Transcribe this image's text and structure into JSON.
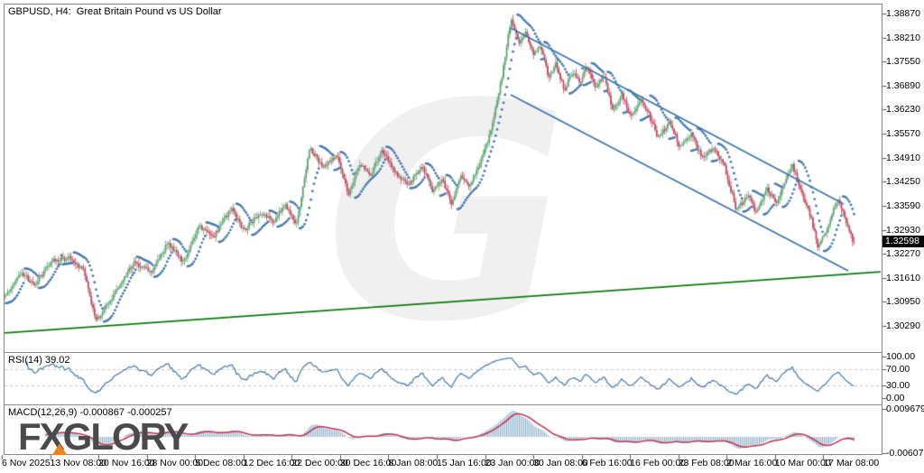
{
  "header": {
    "title": "GBPUSD, H4:  Great Britain Pound vs US Dollar"
  },
  "symbol": {
    "name": "GBPUSD",
    "timeframe": "H4",
    "description": "Great Britain Pound vs US Dollar"
  },
  "watermark": {
    "letter": "G"
  },
  "logo": {
    "text": "FXGLORY"
  },
  "price_panel": {
    "current_price": "1.32598",
    "axis_ticks": [
      "1.38870",
      "1.38210",
      "1.37550",
      "1.36890",
      "1.36230",
      "1.35570",
      "1.34910",
      "1.34250",
      "1.33590",
      "1.32930",
      "1.32270",
      "1.31610",
      "1.30950",
      "1.30290"
    ]
  },
  "rsi_panel": {
    "label": "RSI(14) 39.02",
    "axis_ticks": [
      "100.00",
      "70.00",
      "30.00",
      "0.00"
    ],
    "levels": [
      70,
      30
    ]
  },
  "macd_panel": {
    "label": "MACD(12,26,9) -0.000867 -0.000257",
    "axis_ticks": [
      "0.009679",
      "-0.006078"
    ]
  },
  "time_axis": {
    "labels": [
      "6 Nov 2025",
      "13 Nov 08:00",
      "20 Nov 16:00",
      "28 Nov 00:00",
      "5 Dec 08:00",
      "12 Dec 16:00",
      "22 Dec 00:00",
      "30 Dec 16:00",
      "8 Jan 08:00",
      "15 Jan 16:00",
      "23 Jan 00:00",
      "30 Jan 08:00",
      "6 Feb 16:00",
      "16 Feb 00:00",
      "23 Feb 08:00",
      "2 Mar 16:00",
      "10 Mar 00:00",
      "17 Mar 08:00"
    ]
  },
  "colors": {
    "bull": "#5fa475",
    "bear": "#bf4a60",
    "sar": "#4679ad",
    "channel": "#3c76ad",
    "trendline": "#0c7a0c",
    "rsi_line": "#4878a8",
    "rsi_levels": "#c9c9c9",
    "macd_hist": "#8fb0c9",
    "macd_signal": "#c22e4e",
    "axis_tick": "#555555",
    "badge_bg": "#000000",
    "badge_text": "#ffffff",
    "watermark": "#f0f0f0",
    "logo": "#4a4a4a",
    "logo_accent": "#e8821e"
  },
  "chart_data": {
    "type": "candlestick",
    "title": "GBPUSD, H4: Great Britain Pound vs US Dollar",
    "symbol": "GBPUSD",
    "timeframe": "H4",
    "y_axis": {
      "ticks": [
        1.3887,
        1.3821,
        1.3755,
        1.3689,
        1.3623,
        1.3557,
        1.3491,
        1.3425,
        1.3359,
        1.3293,
        1.3227,
        1.3161,
        1.3095,
        1.3029
      ],
      "current": 1.32598,
      "range": [
        1.296,
        1.3902
      ]
    },
    "x_axis": {
      "labels": [
        "6 Nov 2025",
        "13 Nov 08:00",
        "20 Nov 16:00",
        "28 Nov 00:00",
        "5 Dec 08:00",
        "12 Dec 16:00",
        "22 Dec 00:00",
        "30 Dec 16:00",
        "8 Jan 08:00",
        "15 Jan 16:00",
        "23 Jan 00:00",
        "30 Jan 08:00",
        "6 Feb 16:00",
        "16 Feb 00:00",
        "23 Feb 08:00",
        "2 Mar 16:00",
        "10 Mar 00:00",
        "17 Mar 08:00"
      ]
    },
    "price_path": [
      [
        6,
        1.3104
      ],
      [
        25,
        1.3178
      ],
      [
        40,
        1.3141
      ],
      [
        60,
        1.3208
      ],
      [
        80,
        1.3216
      ],
      [
        95,
        1.3178
      ],
      [
        108,
        1.3041
      ],
      [
        125,
        1.3104
      ],
      [
        150,
        1.3203
      ],
      [
        170,
        1.3178
      ],
      [
        188,
        1.3258
      ],
      [
        205,
        1.3203
      ],
      [
        222,
        1.3303
      ],
      [
        238,
        1.3273
      ],
      [
        258,
        1.3352
      ],
      [
        272,
        1.329
      ],
      [
        290,
        1.334
      ],
      [
        305,
        1.3315
      ],
      [
        318,
        1.3365
      ],
      [
        330,
        1.3303
      ],
      [
        345,
        1.3519
      ],
      [
        360,
        1.3464
      ],
      [
        375,
        1.3497
      ],
      [
        388,
        1.339
      ],
      [
        400,
        1.3477
      ],
      [
        413,
        1.3447
      ],
      [
        425,
        1.3514
      ],
      [
        440,
        1.3447
      ],
      [
        455,
        1.342
      ],
      [
        470,
        1.3465
      ],
      [
        482,
        1.3397
      ],
      [
        492,
        1.3432
      ],
      [
        502,
        1.3365
      ],
      [
        512,
        1.344
      ],
      [
        522,
        1.341
      ],
      [
        532,
        1.3469
      ],
      [
        545,
        1.3556
      ],
      [
        557,
        1.37
      ],
      [
        568,
        1.387
      ],
      [
        577,
        1.3805
      ],
      [
        585,
        1.3837
      ],
      [
        593,
        1.377
      ],
      [
        600,
        1.38
      ],
      [
        610,
        1.3713
      ],
      [
        618,
        1.375
      ],
      [
        627,
        1.3676
      ],
      [
        636,
        1.3726
      ],
      [
        645,
        1.3696
      ],
      [
        652,
        1.3743
      ],
      [
        662,
        1.3683
      ],
      [
        671,
        1.3715
      ],
      [
        681,
        1.3621
      ],
      [
        691,
        1.3666
      ],
      [
        701,
        1.3601
      ],
      [
        711,
        1.3651
      ],
      [
        721,
        1.3609
      ],
      [
        731,
        1.3546
      ],
      [
        744,
        1.3589
      ],
      [
        755,
        1.3521
      ],
      [
        768,
        1.3556
      ],
      [
        780,
        1.3489
      ],
      [
        793,
        1.3521
      ],
      [
        805,
        1.3464
      ],
      [
        818,
        1.3347
      ],
      [
        830,
        1.3389
      ],
      [
        840,
        1.334
      ],
      [
        852,
        1.3407
      ],
      [
        862,
        1.3365
      ],
      [
        874,
        1.3444
      ],
      [
        880,
        1.3469
      ],
      [
        890,
        1.3397
      ],
      [
        900,
        1.3332
      ],
      [
        908,
        1.3248
      ],
      [
        916,
        1.3282
      ],
      [
        925,
        1.3347
      ],
      [
        931,
        1.3372
      ],
      [
        938,
        1.3327
      ],
      [
        944,
        1.3282
      ],
      [
        947,
        1.32598
      ]
    ],
    "overlays": {
      "parabolic_sar": {
        "step": 0.02,
        "max": 0.2,
        "style": "dots"
      },
      "down_channel": {
        "upper": [
          [
            566,
            1.38473
          ],
          [
            935,
            1.33639
          ]
        ],
        "lower": [
          [
            566,
            1.36639
          ],
          [
            940,
            1.31805
          ]
        ]
      },
      "support_trendline": {
        "points": [
          [
            3,
            1.30094
          ],
          [
            977,
            1.3178
          ]
        ]
      }
    },
    "indicators": [
      {
        "name": "RSI",
        "params": [
          14
        ],
        "current": 39.02,
        "levels": [
          70,
          30
        ],
        "range": [
          0,
          100
        ]
      },
      {
        "name": "MACD",
        "params": [
          12,
          26,
          9
        ],
        "current_macd": -0.000867,
        "current_signal": -0.000257,
        "range": [
          -0.006078,
          0.009679
        ]
      }
    ]
  }
}
